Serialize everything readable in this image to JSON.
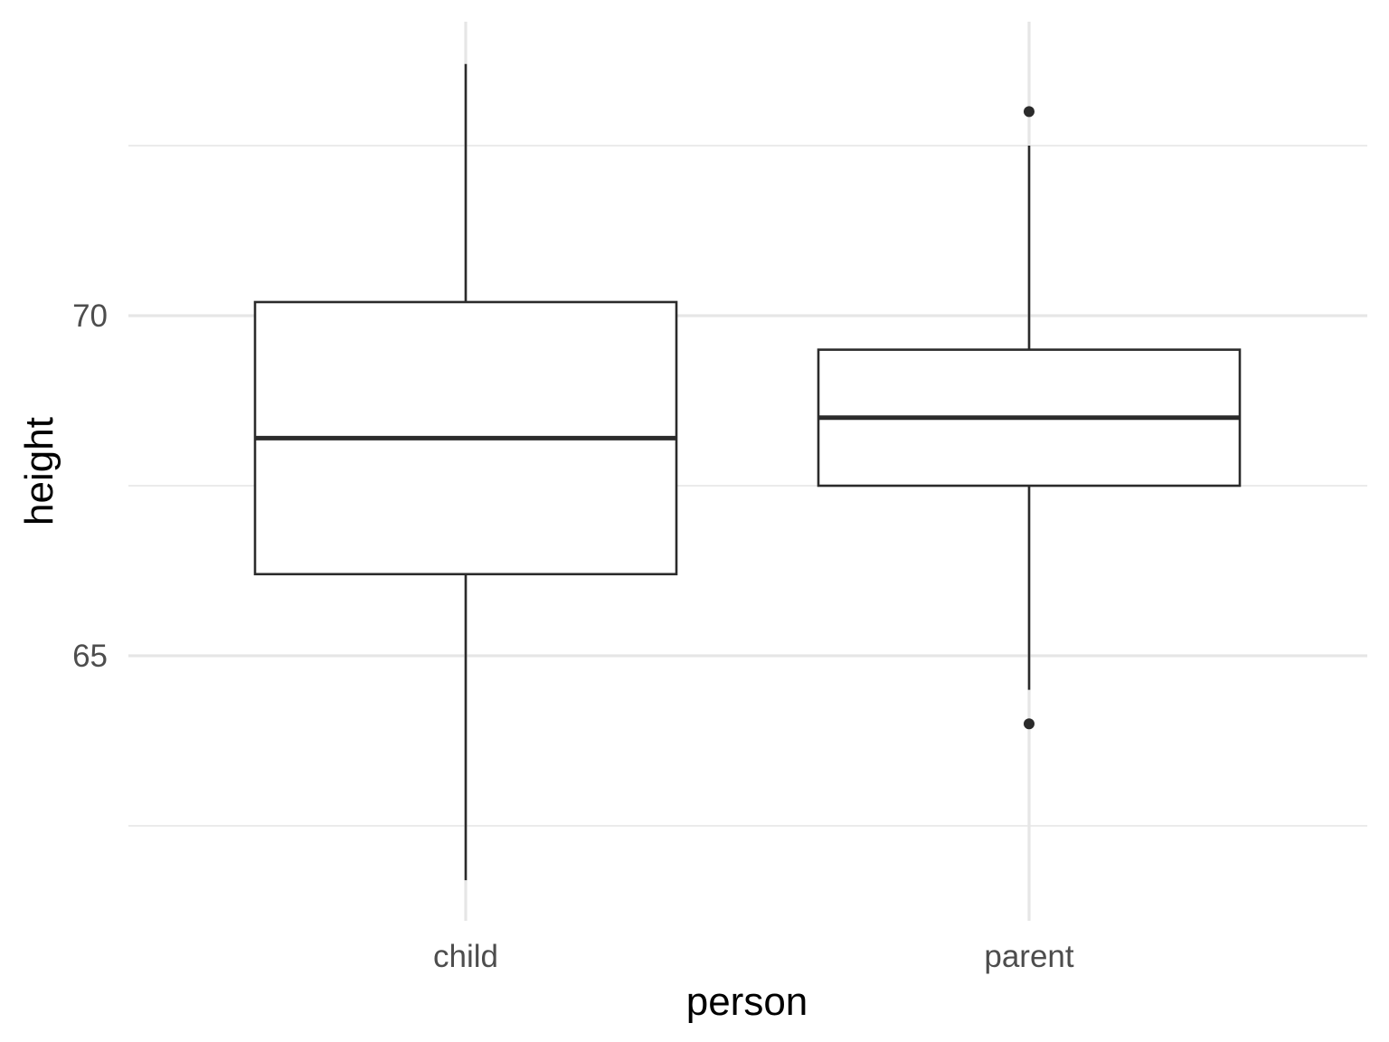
{
  "chart_data": {
    "type": "boxplot",
    "title": "",
    "xlabel": "person",
    "ylabel": "height",
    "categories": [
      "child",
      "parent"
    ],
    "boxes": [
      {
        "category": "child",
        "whisker_low": 61.7,
        "q1": 66.2,
        "median": 68.2,
        "q3": 70.2,
        "whisker_high": 73.7,
        "outliers": []
      },
      {
        "category": "parent",
        "whisker_low": 64.5,
        "q1": 67.5,
        "median": 68.5,
        "q3": 69.5,
        "whisker_high": 72.5,
        "outliers": [
          64.0,
          73.0
        ]
      }
    ],
    "yticks": [
      65,
      70
    ],
    "yminor": [
      62.5,
      67.5,
      72.5
    ],
    "ylim": [
      61.1,
      74.3
    ],
    "grid": true,
    "colors": {
      "box_fill": "#ffffff",
      "box_stroke": "#2b2b2b",
      "grid": "#ebebeb",
      "tick_text": "#4d4d4d"
    }
  }
}
